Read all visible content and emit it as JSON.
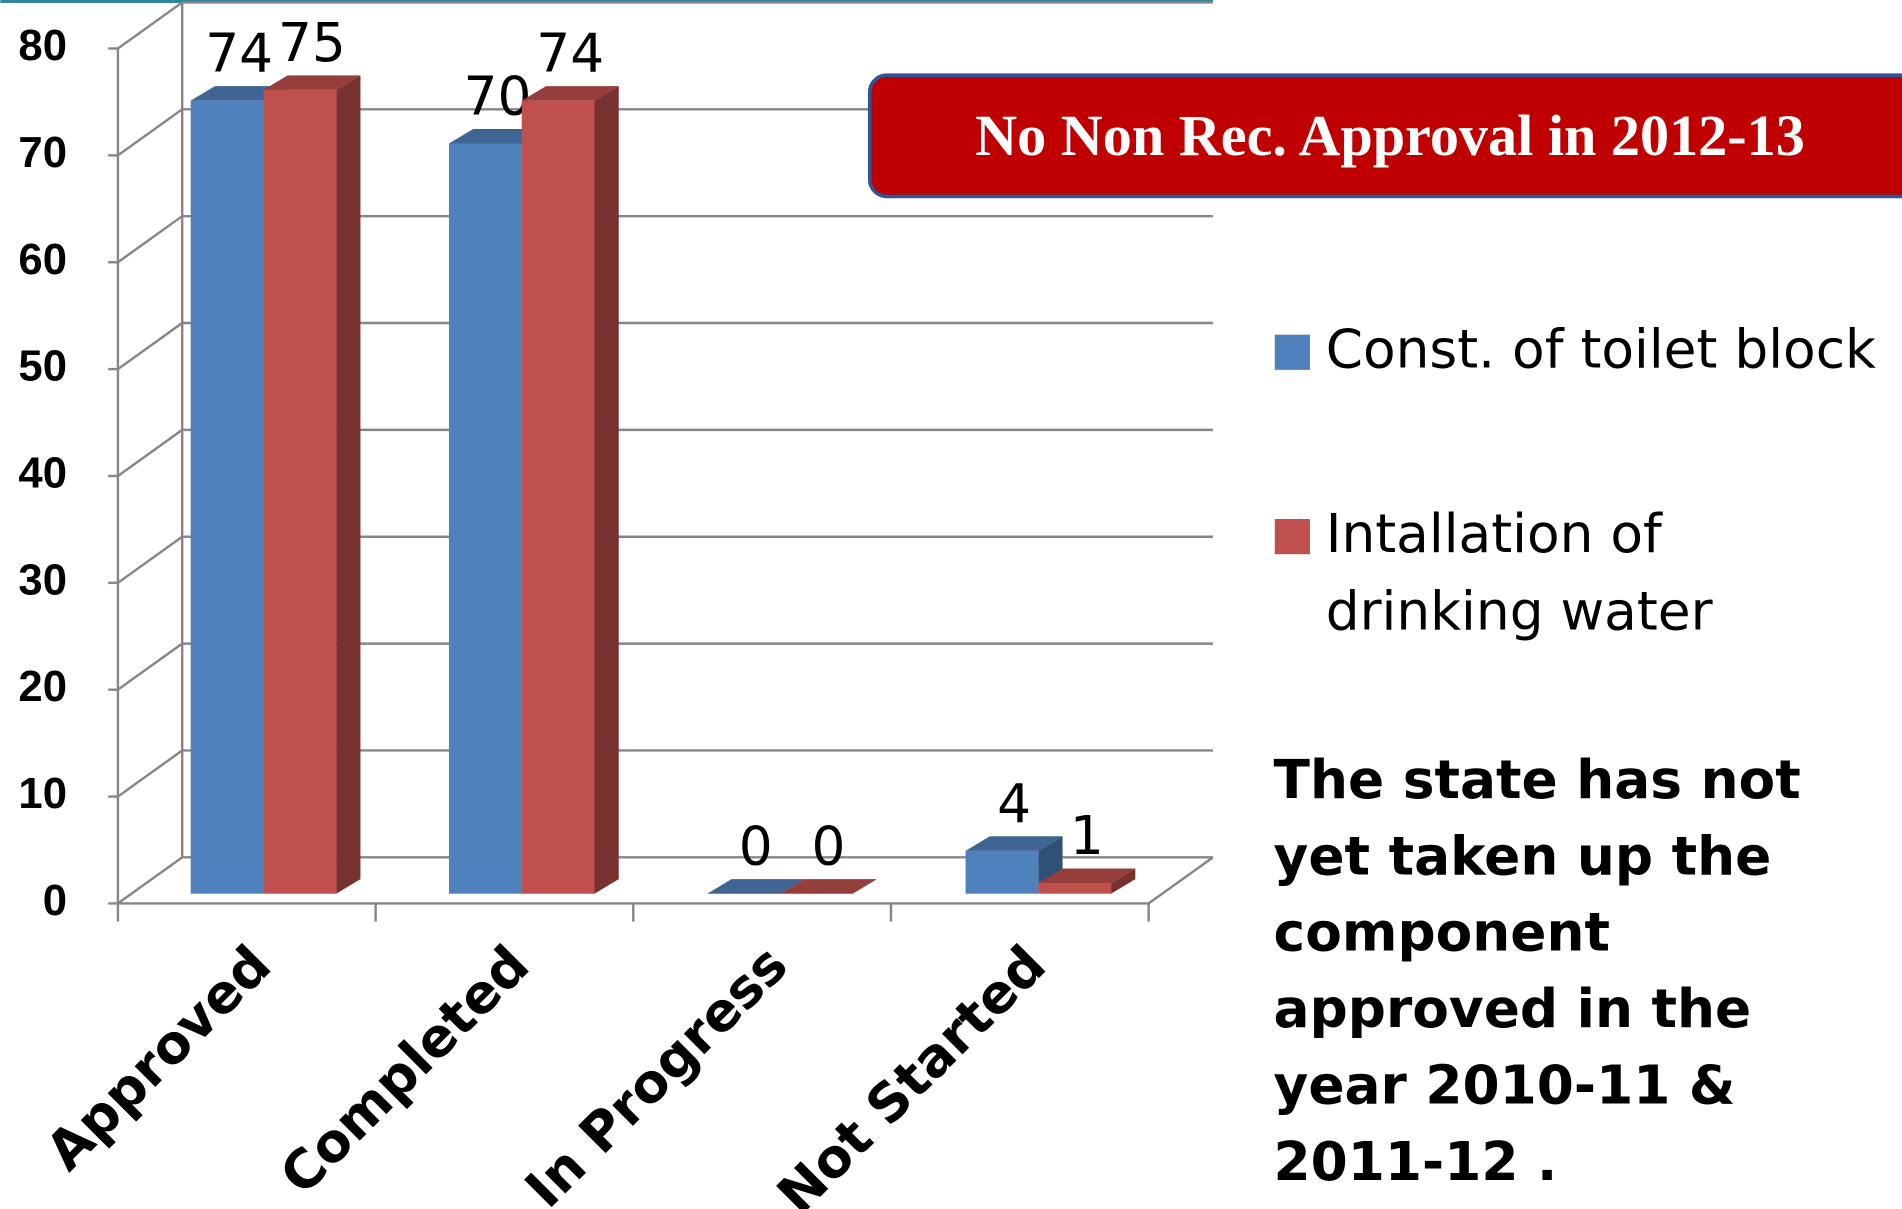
{
  "chart_data": {
    "type": "bar",
    "categories": [
      "Approved",
      "Completed",
      "In Progress",
      "Not Started"
    ],
    "series": [
      {
        "name": "Const. of toilet block",
        "color": "#4f81bd",
        "values": [
          74,
          70,
          0,
          4
        ]
      },
      {
        "name": "Intallation of drinking water",
        "color": "#c0504d",
        "values": [
          75,
          74,
          0,
          1
        ]
      }
    ],
    "ylim": [
      0,
      80
    ],
    "yticks": [
      0,
      10,
      20,
      30,
      40,
      50,
      60,
      70,
      80
    ],
    "grid": true,
    "legend": "right",
    "annotations": [
      "No Non Rec.  Approval in 2012-13",
      "The state has not yet taken up the component approved in the year 2010-11 & 2011-12 ."
    ]
  }
}
